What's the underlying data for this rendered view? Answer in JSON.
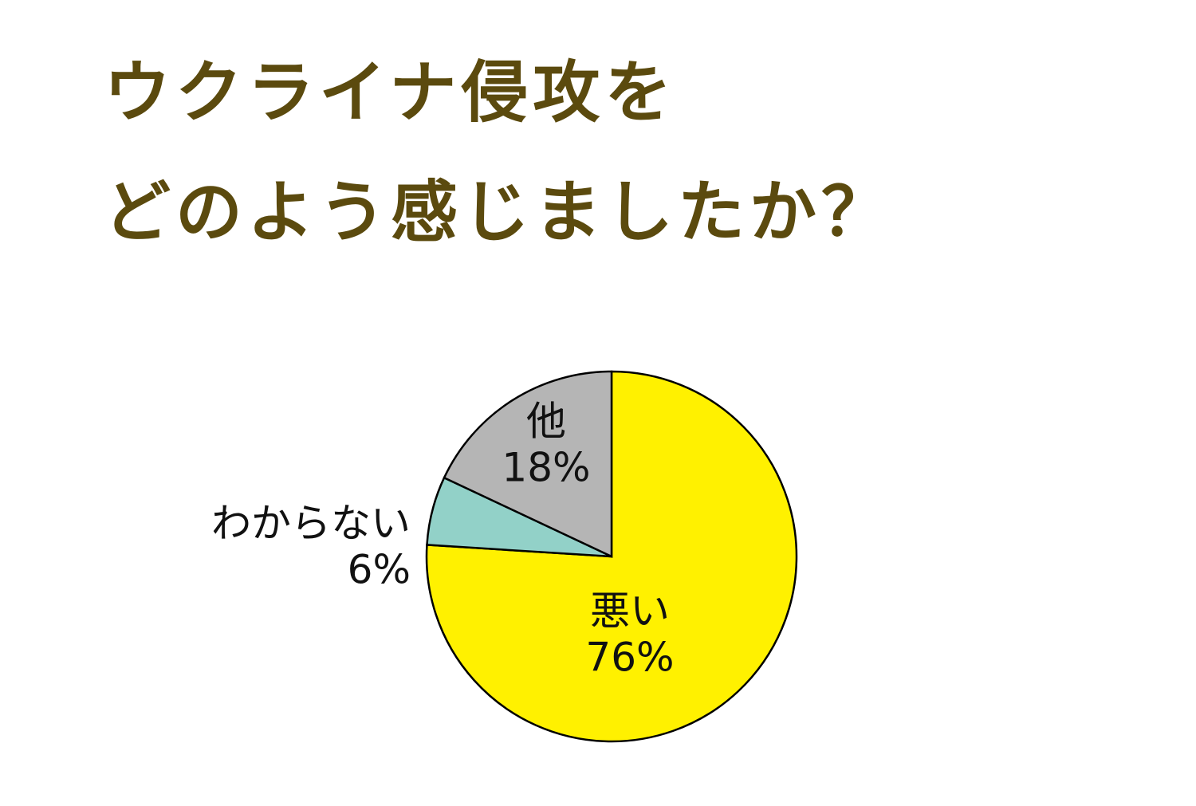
{
  "chart_data": {
    "type": "pie",
    "title": [
      "ウクライナ侵攻を",
      "どのよう感じましたか？"
    ],
    "categories": [
      "悪い",
      "わからない",
      "他"
    ],
    "values": [
      76,
      6,
      18
    ],
    "value_labels": [
      "76%",
      "6%",
      "18%"
    ],
    "colors": [
      "#fff100",
      "#92d1c8",
      "#b5b5b5"
    ]
  }
}
